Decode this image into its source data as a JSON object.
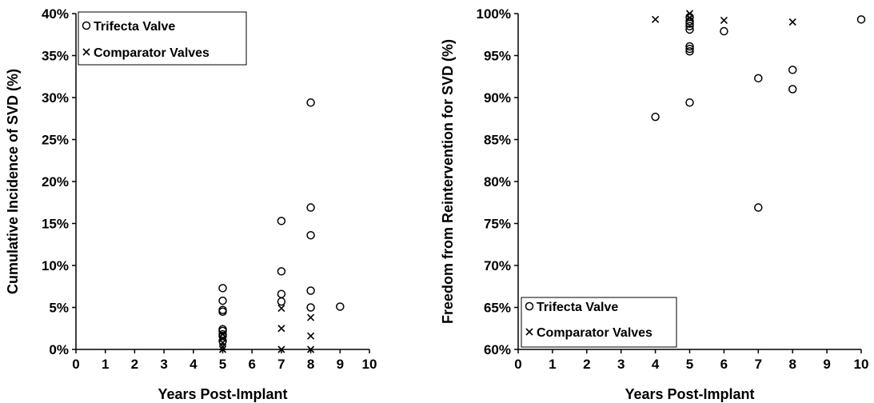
{
  "chart_data": [
    {
      "type": "scatter",
      "title": "",
      "xlabel": "Years Post-Implant",
      "ylabel": "Cumulative Incidence of SVD (%)",
      "xlim": [
        0,
        10
      ],
      "ylim": [
        0,
        40
      ],
      "xticks": [
        "0",
        "1",
        "2",
        "3",
        "4",
        "5",
        "6",
        "7",
        "8",
        "9",
        "10"
      ],
      "yticks": [
        "0%",
        "5%",
        "10%",
        "15%",
        "20%",
        "25%",
        "30%",
        "35%",
        "40%"
      ],
      "grid": false,
      "legend_position": "top-left",
      "series": [
        {
          "name": "Trifecta Valve",
          "marker": "circle",
          "points": [
            [
              5,
              7.3
            ],
            [
              5,
              5.8
            ],
            [
              5,
              4.7
            ],
            [
              5,
              4.5
            ],
            [
              5,
              2.4
            ],
            [
              5,
              2.2
            ],
            [
              5,
              1.8
            ],
            [
              5,
              1.6
            ],
            [
              5,
              1.0
            ],
            [
              7,
              15.3
            ],
            [
              7,
              9.3
            ],
            [
              7,
              6.6
            ],
            [
              7,
              5.7
            ],
            [
              8,
              29.4
            ],
            [
              8,
              16.9
            ],
            [
              8,
              13.6
            ],
            [
              8,
              7.0
            ],
            [
              8,
              5.0
            ],
            [
              9,
              5.1
            ]
          ]
        },
        {
          "name": "Comparator Valves",
          "marker": "x",
          "points": [
            [
              5,
              1.8
            ],
            [
              5,
              1.3
            ],
            [
              5,
              0.8
            ],
            [
              5,
              0.3
            ],
            [
              5,
              0.0
            ],
            [
              7,
              4.9
            ],
            [
              7,
              2.5
            ],
            [
              7,
              0.0
            ],
            [
              8,
              3.8
            ],
            [
              8,
              1.6
            ],
            [
              8,
              0.0
            ]
          ]
        }
      ]
    },
    {
      "type": "scatter",
      "title": "",
      "xlabel": "Years Post-Implant",
      "ylabel": "Freedom from Reintervention for SVD (%)",
      "xlim": [
        0,
        10
      ],
      "ylim": [
        60,
        100
      ],
      "xticks": [
        "0",
        "1",
        "2",
        "3",
        "4",
        "5",
        "6",
        "7",
        "8",
        "9",
        "10"
      ],
      "yticks": [
        "60%",
        "65%",
        "70%",
        "75%",
        "80%",
        "85%",
        "90%",
        "95%",
        "100%"
      ],
      "grid": false,
      "legend_position": "bottom-left",
      "series": [
        {
          "name": "Trifecta Valve",
          "marker": "circle",
          "points": [
            [
              4,
              87.7
            ],
            [
              5,
              99.6
            ],
            [
              5,
              99.1
            ],
            [
              5,
              98.8
            ],
            [
              5,
              98.5
            ],
            [
              5,
              98.1
            ],
            [
              5,
              96.1
            ],
            [
              5,
              95.8
            ],
            [
              5,
              95.5
            ],
            [
              5,
              89.4
            ],
            [
              6,
              97.9
            ],
            [
              7,
              92.3
            ],
            [
              7,
              76.9
            ],
            [
              8,
              93.3
            ],
            [
              8,
              91.0
            ],
            [
              10,
              99.3
            ]
          ]
        },
        {
          "name": "Comparator Valves",
          "marker": "x",
          "points": [
            [
              4,
              99.3
            ],
            [
              5,
              100.0
            ],
            [
              5,
              99.5
            ],
            [
              6,
              99.2
            ],
            [
              8,
              99.0
            ]
          ]
        }
      ]
    }
  ]
}
